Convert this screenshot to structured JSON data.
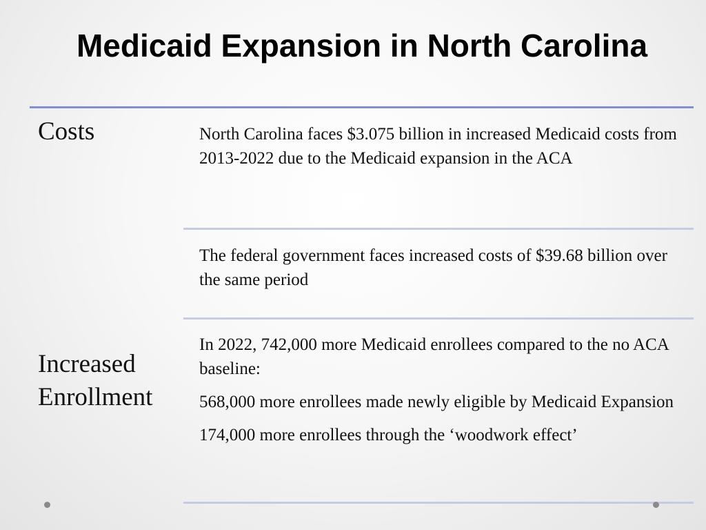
{
  "slide": {
    "title": "Medicaid Expansion in North Carolina"
  },
  "table": {
    "row_labels": {
      "costs": "Costs",
      "enrollment_line1": "Increased",
      "enrollment_line2": "Enrollment"
    },
    "cells": [
      {
        "paragraphs": [
          "North Carolina faces $3.075 billion in increased Medicaid costs from 2013-2022 due to the Medicaid expansion in the ACA"
        ]
      },
      {
        "paragraphs": [
          "The federal government faces increased costs of $39.68 billion over the same period"
        ]
      },
      {
        "paragraphs": [
          "In 2022, 742,000 more Medicaid enrollees compared to the no ACA baseline:",
          "568,000 more enrollees made newly eligible by Medicaid Expansion",
          "174,000 more enrollees through the ‘woodwork effect’"
        ]
      }
    ]
  },
  "colors": {
    "header_rule": "#7f8fcf",
    "row_rule": "#c6cbe3"
  }
}
